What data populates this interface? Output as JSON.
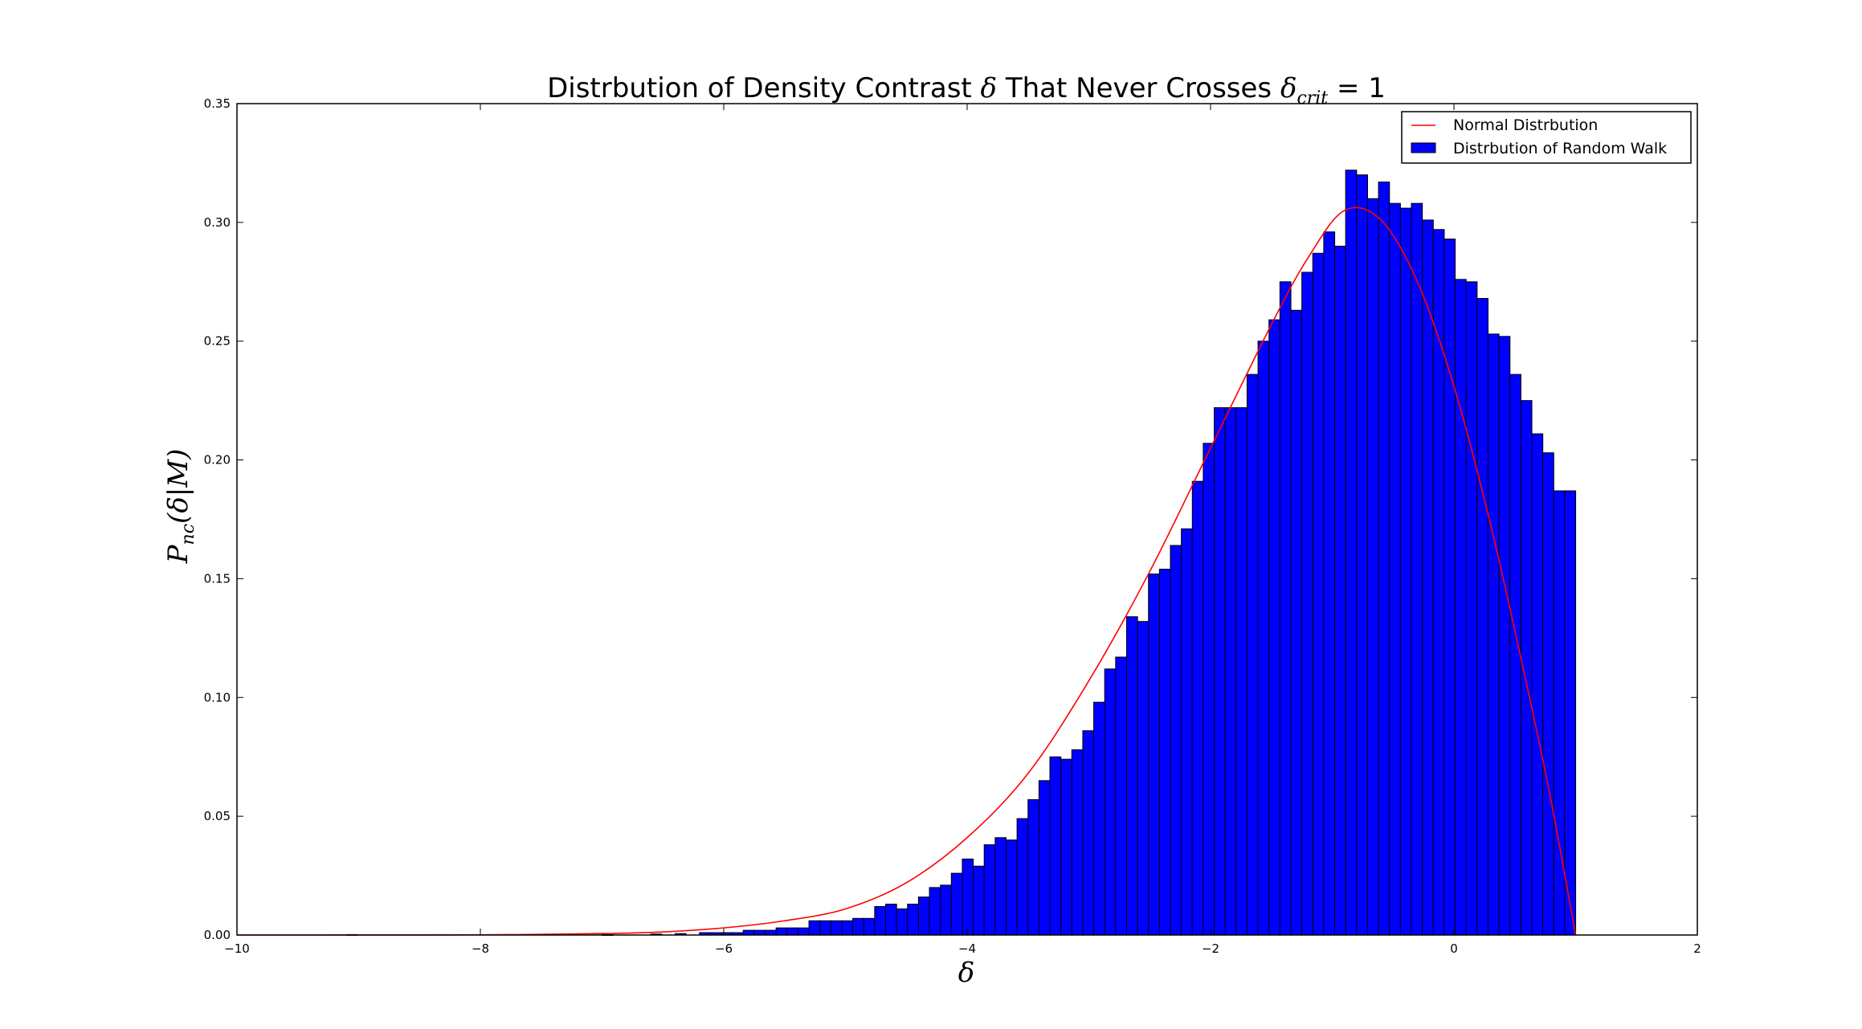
{
  "chart_data": {
    "type": "bar",
    "title": {
      "prefix": "Distrbution of Density Contrast ",
      "delta": "δ",
      "middle": " That Never Crosses ",
      "crit_sub": "crit",
      "suffix": " = 1"
    },
    "xlabel": "δ",
    "ylabel": {
      "main": "P",
      "sub": "nc",
      "rest": "(δ|M)"
    },
    "xlim": [
      -10,
      2
    ],
    "ylim": [
      0,
      0.35
    ],
    "xticks": [
      -10,
      -8,
      -6,
      -4,
      -2,
      0,
      2
    ],
    "xtick_labels": [
      "−10",
      "−8",
      "−6",
      "−4",
      "−2",
      "0",
      "2"
    ],
    "yticks": [
      0,
      0.05,
      0.1,
      0.15,
      0.2,
      0.25,
      0.3,
      0.35
    ],
    "ytick_labels": [
      "0.00",
      "0.05",
      "0.10",
      "0.15",
      "0.20",
      "0.25",
      "0.30",
      "0.35"
    ],
    "legend": {
      "position": "top-right",
      "entries": [
        "Normal Distrbution",
        "Distrbution of Random Walk"
      ]
    },
    "histogram": {
      "name": "Distrbution of Random Walk",
      "color": "#0000ff",
      "bin_width": 0.0905,
      "bin_starts": [
        -6.2,
        -6.11,
        -6.02,
        -5.93,
        -5.84,
        -5.75,
        -5.66,
        -5.57,
        -5.48,
        -5.39,
        -5.3,
        -5.21,
        -5.12,
        -5.03,
        -4.94,
        -4.85,
        -4.76,
        -4.67,
        -4.58,
        -4.49,
        -4.4,
        -4.31,
        -4.22,
        -4.13,
        -4.04,
        -3.95,
        -3.86,
        -3.77,
        -3.68,
        -3.59,
        -3.5,
        -3.41,
        -3.32,
        -3.23,
        -3.14,
        -3.05,
        -2.96,
        -2.87,
        -2.78,
        -2.69,
        -2.6,
        -2.51,
        -2.42,
        -2.33,
        -2.24,
        -2.15,
        -2.06,
        -1.97,
        -1.88,
        -1.79,
        -1.7,
        -1.61,
        -1.52,
        -1.43,
        -1.34,
        -1.25,
        -1.16,
        -1.07,
        -0.98,
        -0.89,
        -0.8,
        -0.71,
        -0.62,
        -0.53,
        -0.44,
        -0.35,
        -0.26,
        -0.17,
        -0.08,
        0.01,
        0.1,
        0.19,
        0.28,
        0.37,
        0.46,
        0.55,
        0.64,
        0.73,
        0.82,
        0.91
      ],
      "values": [
        0.001,
        0.001,
        0.001,
        0.001,
        0.002,
        0.002,
        0.002,
        0.003,
        0.003,
        0.003,
        0.006,
        0.006,
        0.006,
        0.006,
        0.007,
        0.007,
        0.012,
        0.013,
        0.011,
        0.013,
        0.016,
        0.02,
        0.021,
        0.026,
        0.032,
        0.029,
        0.038,
        0.041,
        0.04,
        0.049,
        0.057,
        0.065,
        0.075,
        0.074,
        0.078,
        0.086,
        0.098,
        0.112,
        0.117,
        0.134,
        0.132,
        0.152,
        0.154,
        0.164,
        0.171,
        0.191,
        0.207,
        0.222,
        0.222,
        0.222,
        0.236,
        0.25,
        0.259,
        0.275,
        0.263,
        0.279,
        0.287,
        0.296,
        0.29,
        0.322,
        0.32,
        0.31,
        0.317,
        0.308,
        0.306,
        0.308,
        0.301,
        0.297,
        0.293,
        0.276,
        0.275,
        0.268,
        0.253,
        0.252,
        0.236,
        0.225,
        0.211,
        0.203,
        0.187,
        0.187
      ],
      "tail_bins": [
        {
          "x": -9.1,
          "value": 0.0002
        },
        {
          "x": -7.0,
          "value": 0.0002
        },
        {
          "x": -6.6,
          "value": 0.0004
        },
        {
          "x": -6.4,
          "value": 0.0006
        }
      ]
    },
    "normal_curve": {
      "name": "Normal Distrbution",
      "color": "#ff0000",
      "x": [
        -10,
        -9,
        -8,
        -7,
        -6.5,
        -6,
        -5.5,
        -5,
        -4.5,
        -4,
        -3.5,
        -3,
        -2.5,
        -2,
        -1.5,
        -1.2,
        -0.9,
        -0.6,
        -0.3,
        0,
        0.3,
        0.6,
        0.8,
        1.0
      ],
      "y": [
        0,
        1e-05,
        8e-05,
        0.0006,
        0.0013,
        0.003,
        0.006,
        0.011,
        0.022,
        0.041,
        0.068,
        0.107,
        0.153,
        0.205,
        0.257,
        0.285,
        0.305,
        0.301,
        0.275,
        0.231,
        0.173,
        0.105,
        0.056,
        0
      ]
    }
  }
}
